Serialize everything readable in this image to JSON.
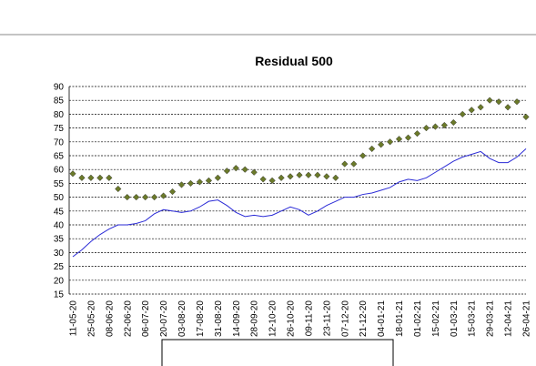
{
  "chart_data": {
    "type": "line",
    "title": "Residual 500",
    "categories": [
      "11-05-20",
      null,
      "25-05-20",
      null,
      "08-06-20",
      null,
      "22-06-20",
      null,
      "06-07-20",
      null,
      "20-07-20",
      null,
      "03-08-20",
      null,
      "17-08-20",
      null,
      "31-08-20",
      null,
      "14-09-20",
      null,
      "28-09-20",
      null,
      "12-10-20",
      null,
      "26-10-20",
      null,
      "09-11-20",
      null,
      "23-11-20",
      null,
      "07-12-20",
      null,
      "21-12-20",
      null,
      "04-01-21",
      null,
      "18-01-21",
      null,
      "01-02-21",
      null,
      "15-02-21",
      null,
      "01-03-21",
      null,
      "15-03-21",
      null,
      "29-03-21",
      null,
      "12-04-21",
      null,
      "26-04-21"
    ],
    "series": [
      {
        "color": "#6b7a2a",
        "marker": "diamond",
        "values": [
          58.5,
          57,
          57,
          57,
          57,
          53,
          50,
          50,
          50,
          50,
          50.5,
          52,
          54.5,
          55,
          55.5,
          56,
          57,
          59.5,
          60.5,
          60,
          59,
          56.5,
          56,
          57,
          57.5,
          58,
          58,
          58,
          57.5,
          57,
          62,
          62,
          65,
          67.5,
          69,
          70,
          71,
          71.5,
          73,
          75,
          75.5,
          76,
          77,
          80,
          81.5,
          82.5,
          85,
          84.5,
          82.5,
          84.5,
          79
        ]
      },
      {
        "color": "#2b2bd6",
        "marker": "none",
        "values": [
          28.5,
          31,
          34,
          36.5,
          38.5,
          40,
          40,
          40.5,
          41.5,
          44,
          45.5,
          45,
          44.5,
          45,
          46.5,
          48.5,
          49,
          47,
          44.5,
          43,
          43.5,
          43,
          43.5,
          45,
          46.5,
          45.5,
          43.5,
          45,
          47,
          48.5,
          50,
          50,
          51,
          51.5,
          52.5,
          53.5,
          55.5,
          56.5,
          56,
          57,
          59,
          61,
          63,
          64.5,
          65.5,
          66.5,
          64,
          62.5,
          62.5,
          64.5,
          67.5
        ]
      }
    ],
    "ylim": [
      15,
      90
    ],
    "yticks": [
      15,
      20,
      25,
      30,
      35,
      40,
      45,
      50,
      55,
      60,
      65,
      70,
      75,
      80,
      85,
      90
    ],
    "grid": true
  }
}
